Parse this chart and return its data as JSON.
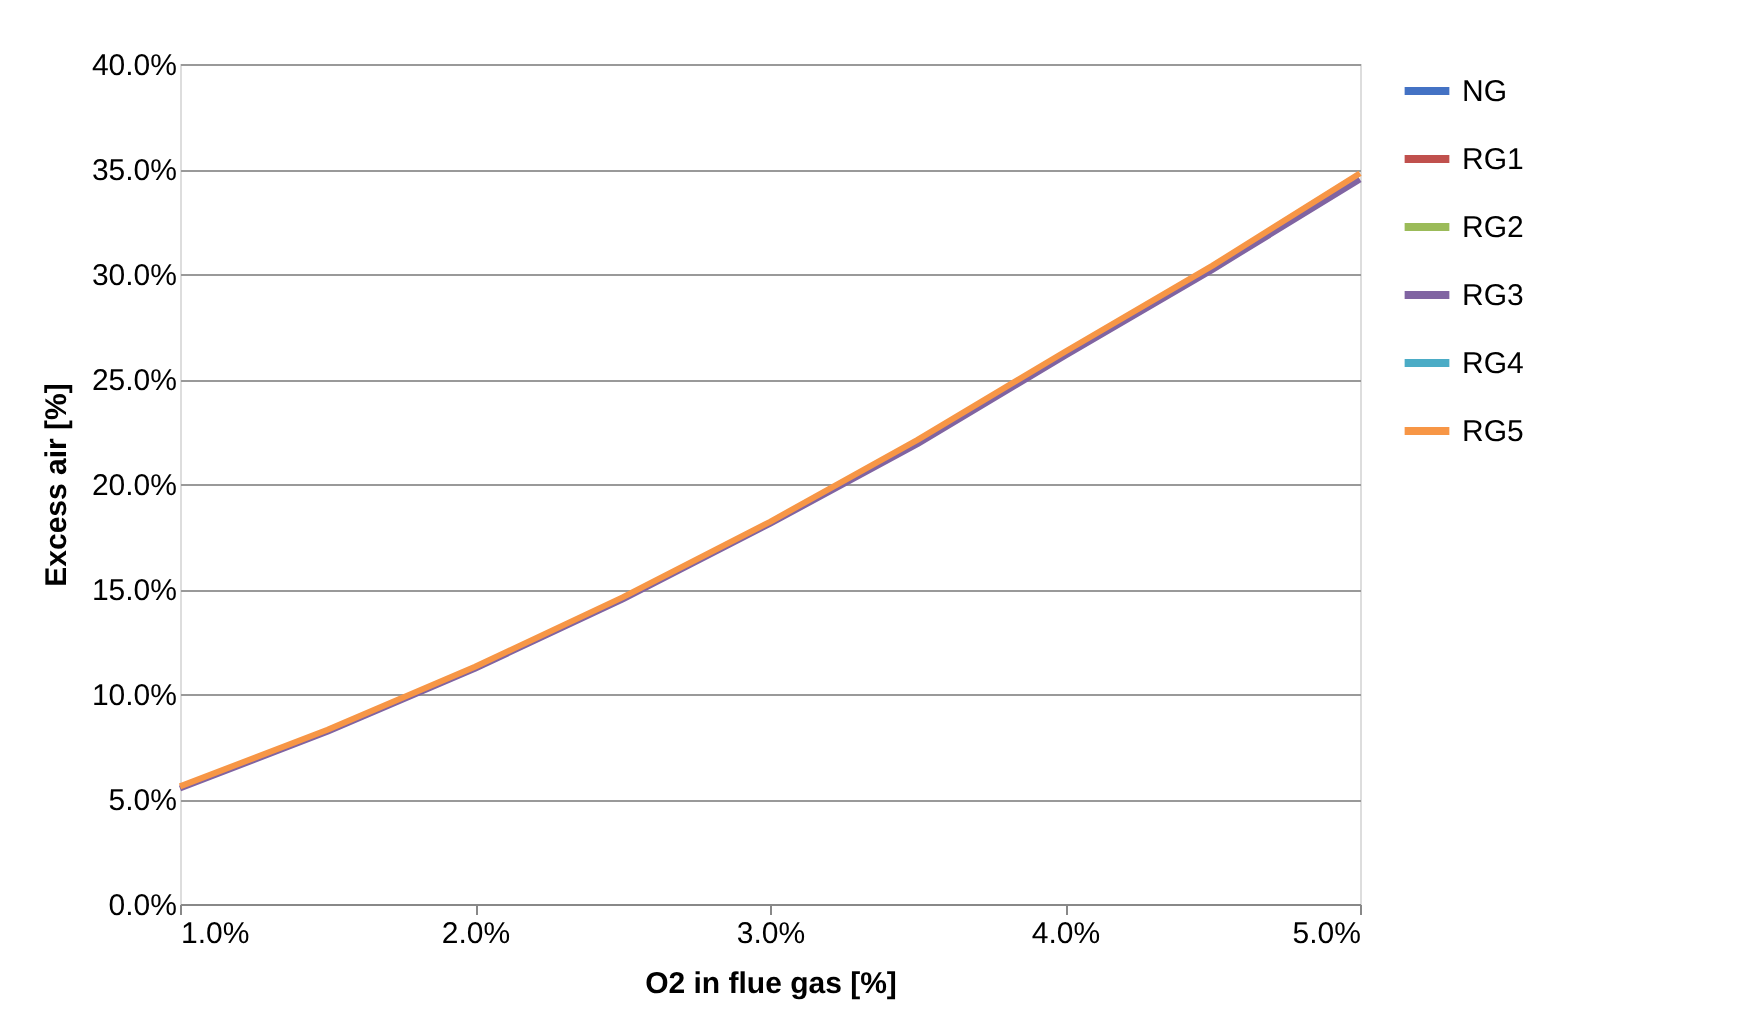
{
  "chart_data": {
    "type": "line",
    "xlabel": "O2 in flue gas [%]",
    "ylabel": "Excess air [%]",
    "x": [
      1.0,
      1.5,
      2.0,
      2.5,
      3.0,
      3.5,
      4.0,
      4.5,
      5.0
    ],
    "xlim": [
      1.0,
      5.0
    ],
    "xticks": [
      {
        "value": 1,
        "label": "1.0%"
      },
      {
        "value": 2,
        "label": "2.0%"
      },
      {
        "value": 3,
        "label": "3.0%"
      },
      {
        "value": 4,
        "label": "4.0%"
      },
      {
        "value": 5,
        "label": "5.0%"
      }
    ],
    "ylim": [
      0,
      40
    ],
    "yticks": [
      {
        "value": 0,
        "label": "0.0%"
      },
      {
        "value": 5,
        "label": "5.0%"
      },
      {
        "value": 10,
        "label": "10.0%"
      },
      {
        "value": 15,
        "label": "15.0%"
      },
      {
        "value": 20,
        "label": "20.0%"
      },
      {
        "value": 25,
        "label": "25.0%"
      },
      {
        "value": 30,
        "label": "30.0%"
      },
      {
        "value": 35,
        "label": "35.0%"
      },
      {
        "value": 40,
        "label": "40.0%"
      }
    ],
    "grid": "y",
    "legend": "right",
    "marker": "none",
    "line_style": "solid",
    "series": [
      {
        "name": "NG",
        "color": "#4472c4",
        "values": [
          null,
          null,
          null,
          null,
          null,
          null,
          null,
          null,
          null
        ]
      },
      {
        "name": "RG1",
        "color": "#c0504d",
        "values": [
          null,
          null,
          null,
          null,
          null,
          null,
          null,
          null,
          null
        ]
      },
      {
        "name": "RG2",
        "color": "#9bbb59",
        "values": [
          null,
          null,
          null,
          null,
          null,
          null,
          null,
          null,
          null
        ]
      },
      {
        "name": "RG3",
        "color": "#8064a2",
        "values": [
          5.5,
          8.2,
          11.2,
          14.5,
          18.1,
          21.9,
          26.1,
          30.2,
          34.5
        ]
      },
      {
        "name": "RG4",
        "color": "#4bacc6",
        "values": [
          null,
          null,
          null,
          null,
          null,
          null,
          null,
          null,
          null
        ]
      },
      {
        "name": "RG5",
        "color": "#f79646",
        "values": [
          5.6,
          8.3,
          11.3,
          14.6,
          18.2,
          22.1,
          26.3,
          30.4,
          34.8
        ]
      }
    ]
  }
}
